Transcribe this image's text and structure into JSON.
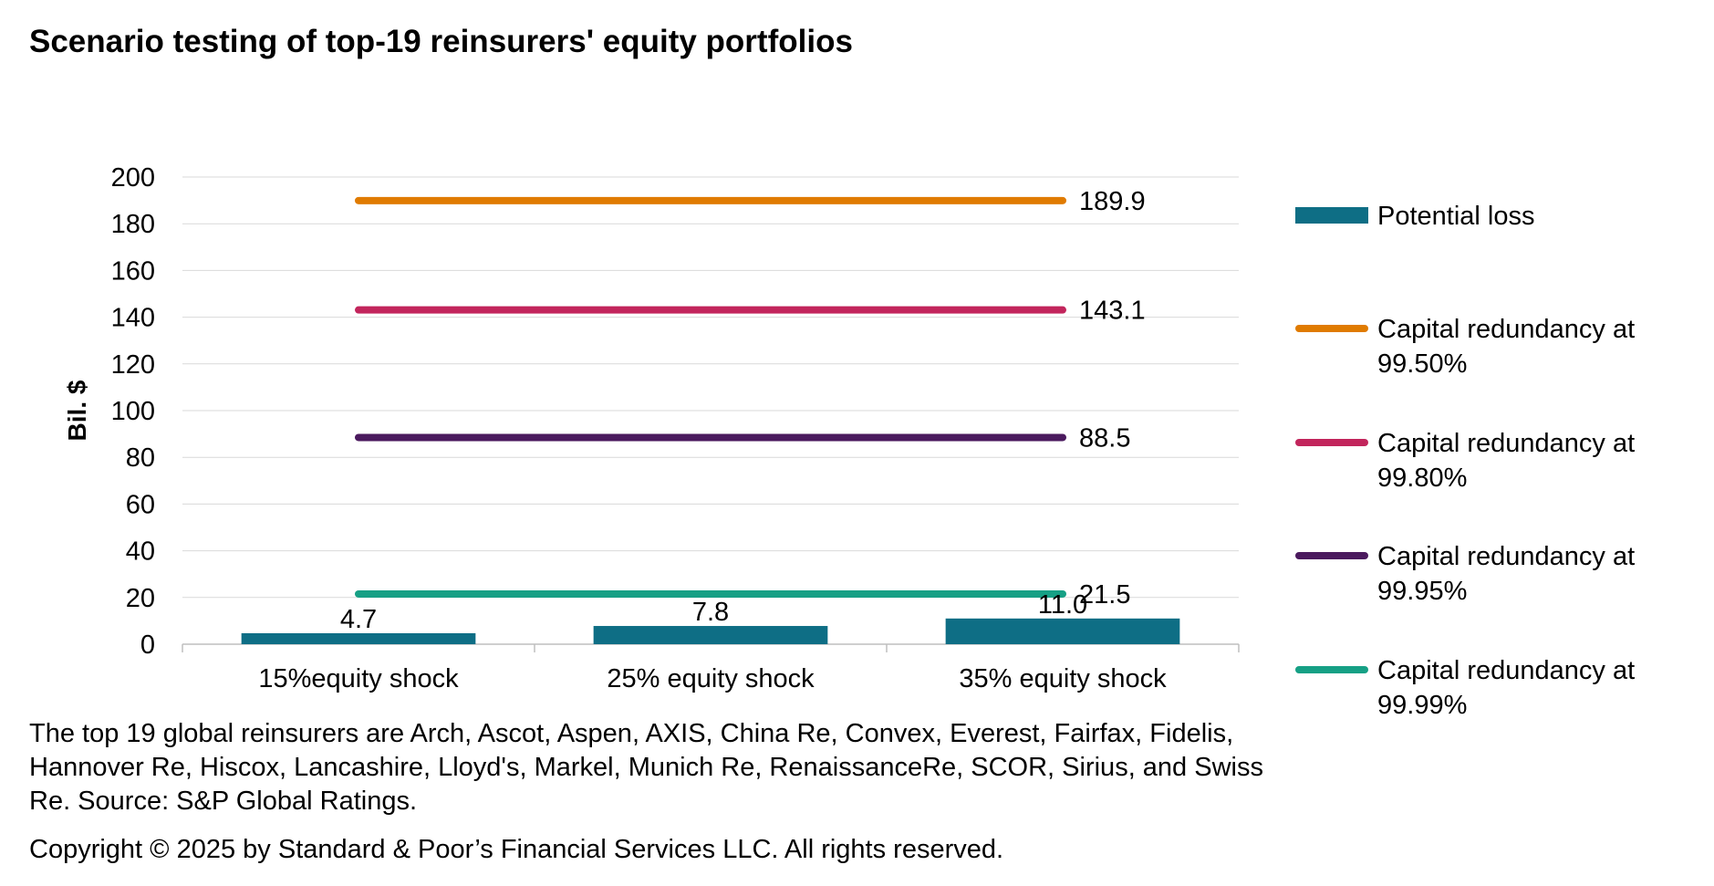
{
  "title": "Scenario testing of top-19 reinsurers' equity portfolios",
  "footnote": "The top 19 global reinsurers are Arch, Ascot, Aspen, AXIS, China Re, Convex, Everest, Fairfax, Fidelis, Hannover Re, Hiscox, Lancashire, Lloyd's, Markel, Munich Re, RenaissanceRe, SCOR, Sirius, and Swiss Re. Source: S&P Global Ratings.",
  "copyright": "Copyright © 2025 by Standard & Poor’s Financial Services LLC. All rights reserved.",
  "colors": {
    "potential_loss": "#0E6E85",
    "cap_9950": "#E07B00",
    "cap_9980": "#C2255C",
    "cap_9995": "#4B1A5E",
    "cap_9999": "#16A085",
    "grid": "#D9D9D9"
  },
  "chart_data": {
    "type": "bar",
    "title": "Scenario testing of top-19 reinsurers' equity portfolios",
    "xlabel": "",
    "ylabel": "Bil. $",
    "ylim": [
      0,
      200
    ],
    "yticks": [
      0,
      20,
      40,
      60,
      80,
      100,
      120,
      140,
      160,
      180,
      200
    ],
    "grid": true,
    "legend_position": "right",
    "categories": [
      "15%equity shock",
      "25% equity shock",
      "35% equity shock"
    ],
    "series": [
      {
        "name": "Potential loss",
        "type": "bar",
        "color": "#0E6E85",
        "values": [
          4.7,
          7.8,
          11.0
        ],
        "labels": [
          "4.7",
          "7.8",
          "11.0"
        ]
      }
    ],
    "reference_lines": [
      {
        "name": "Capital redundancy at 99.50%",
        "value": 189.9,
        "label": "189.9",
        "color": "#E07B00"
      },
      {
        "name": "Capital redundancy at 99.80%",
        "value": 143.1,
        "label": "143.1",
        "color": "#C2255C"
      },
      {
        "name": "Capital redundancy at 99.95%",
        "value": 88.5,
        "label": "88.5",
        "color": "#4B1A5E"
      },
      {
        "name": "Capital redundancy at 99.99%",
        "value": 21.5,
        "label": "21.5",
        "color": "#16A085"
      }
    ]
  },
  "legend": [
    {
      "label": "Potential loss",
      "kind": "bar",
      "color": "#0E6E85"
    },
    {
      "label": "Capital redundancy at 99.50%",
      "kind": "line",
      "color": "#E07B00"
    },
    {
      "label": "Capital redundancy at 99.80%",
      "kind": "line",
      "color": "#C2255C"
    },
    {
      "label": "Capital redundancy at 99.95%",
      "kind": "line",
      "color": "#4B1A5E"
    },
    {
      "label": "Capital redundancy at 99.99%",
      "kind": "line",
      "color": "#16A085"
    }
  ]
}
